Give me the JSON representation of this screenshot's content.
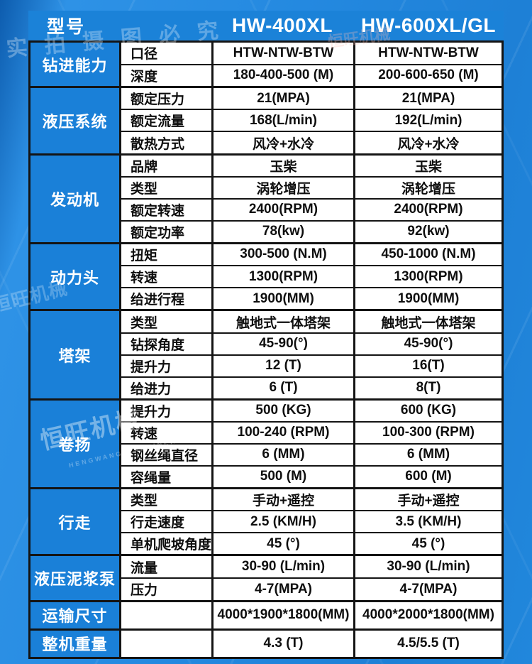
{
  "header": {
    "row_label": "型号",
    "model1": "HW-400XL",
    "model2": "HW-600XL/GL"
  },
  "watermarks": {
    "top": "实拍摄图必究",
    "brand": "恒旺机械",
    "brand_small": "HENGWANG MACHINERY",
    "mid": "恒旺机械",
    "header_faint": "恒旺机械"
  },
  "colors": {
    "page_blue": "#2489e0",
    "bar_blue": "#1b82d8",
    "cell_blue": "#1a80d8",
    "border_black": "#141414",
    "text_light": "#ffffff",
    "text_dark": "#0e0e0e"
  },
  "table": {
    "groups": [
      {
        "key": "drilling-capacity",
        "label": "钻进能力",
        "rows": [
          {
            "attr": "口径",
            "v1": "HTW-NTW-BTW",
            "v2": "HTW-NTW-BTW"
          },
          {
            "attr": "深度",
            "v1": "180-400-500 (M)",
            "v2": "200-600-650 (M)"
          }
        ]
      },
      {
        "key": "hydraulic-system",
        "label": "液压系统",
        "rows": [
          {
            "attr": "额定压力",
            "v1": "21(MPA)",
            "v2": "21(MPA)"
          },
          {
            "attr": "额定流量",
            "v1": "168(L/min)",
            "v2": "192(L/min)"
          },
          {
            "attr": "散热方式",
            "v1": "风冷+水冷",
            "v2": "风冷+水冷"
          }
        ]
      },
      {
        "key": "engine",
        "label": "发动机",
        "rows": [
          {
            "attr": "品牌",
            "v1": "玉柴",
            "v2": "玉柴"
          },
          {
            "attr": "类型",
            "v1": "涡轮增压",
            "v2": "涡轮增压"
          },
          {
            "attr": "额定转速",
            "v1": "2400(RPM)",
            "v2": "2400(RPM)"
          },
          {
            "attr": "额定功率",
            "v1": "78(kw)",
            "v2": "92(kw)"
          }
        ]
      },
      {
        "key": "power-head",
        "label": "动力头",
        "rows": [
          {
            "attr": "扭矩",
            "v1": "300-500 (N.M)",
            "v2": "450-1000 (N.M)"
          },
          {
            "attr": "转速",
            "v1": "1300(RPM)",
            "v2": "1300(RPM)"
          },
          {
            "attr": "给进行程",
            "v1": "1900(MM)",
            "v2": "1900(MM)"
          }
        ]
      },
      {
        "key": "tower",
        "label": "塔架",
        "rows": [
          {
            "attr": "类型",
            "v1": "触地式一体塔架",
            "v2": "触地式一体塔架"
          },
          {
            "attr": "钻探角度",
            "v1": "45-90(°)",
            "v2": "45-90(°)"
          },
          {
            "attr": "提升力",
            "v1": "12 (T)",
            "v2": "16(T)"
          },
          {
            "attr": "给进力",
            "v1": "6 (T)",
            "v2": "8(T)"
          }
        ]
      },
      {
        "key": "winch",
        "label": "卷扬",
        "rows": [
          {
            "attr": "提升力",
            "v1": "500 (KG)",
            "v2": "600 (KG)"
          },
          {
            "attr": "转速",
            "v1": "100-240 (RPM)",
            "v2": "100-300 (RPM)"
          },
          {
            "attr": "钢丝绳直径",
            "v1": "6 (MM)",
            "v2": "6 (MM)"
          },
          {
            "attr": "容绳量",
            "v1": "500 (M)",
            "v2": "600 (M)"
          }
        ]
      },
      {
        "key": "travel",
        "label": "行走",
        "rows": [
          {
            "attr": "类型",
            "v1": "手动+遥控",
            "v2": "手动+遥控"
          },
          {
            "attr": "行走速度",
            "v1": "2.5 (KM/H)",
            "v2": "3.5 (KM/H)"
          },
          {
            "attr": "单机爬坡角度",
            "v1": "45 (°)",
            "v2": "45 (°)"
          }
        ]
      },
      {
        "key": "mud-pump",
        "label": "液压泥浆泵",
        "rows": [
          {
            "attr": "流量",
            "v1": "30-90 (L/min)",
            "v2": "30-90 (L/min)"
          },
          {
            "attr": "压力",
            "v1": "4-7(MPA)",
            "v2": "4-7(MPA)"
          }
        ]
      },
      {
        "key": "transport-size",
        "label": "运输尺寸",
        "rows": [
          {
            "attr": "",
            "v1": "4000*1900*1800(MM)",
            "v2": "4000*2000*1800(MM)"
          }
        ]
      },
      {
        "key": "total-weight",
        "label": "整机重量",
        "rows": [
          {
            "attr": "",
            "v1": "4.3 (T)",
            "v2": "4.5/5.5 (T)"
          }
        ]
      }
    ]
  }
}
